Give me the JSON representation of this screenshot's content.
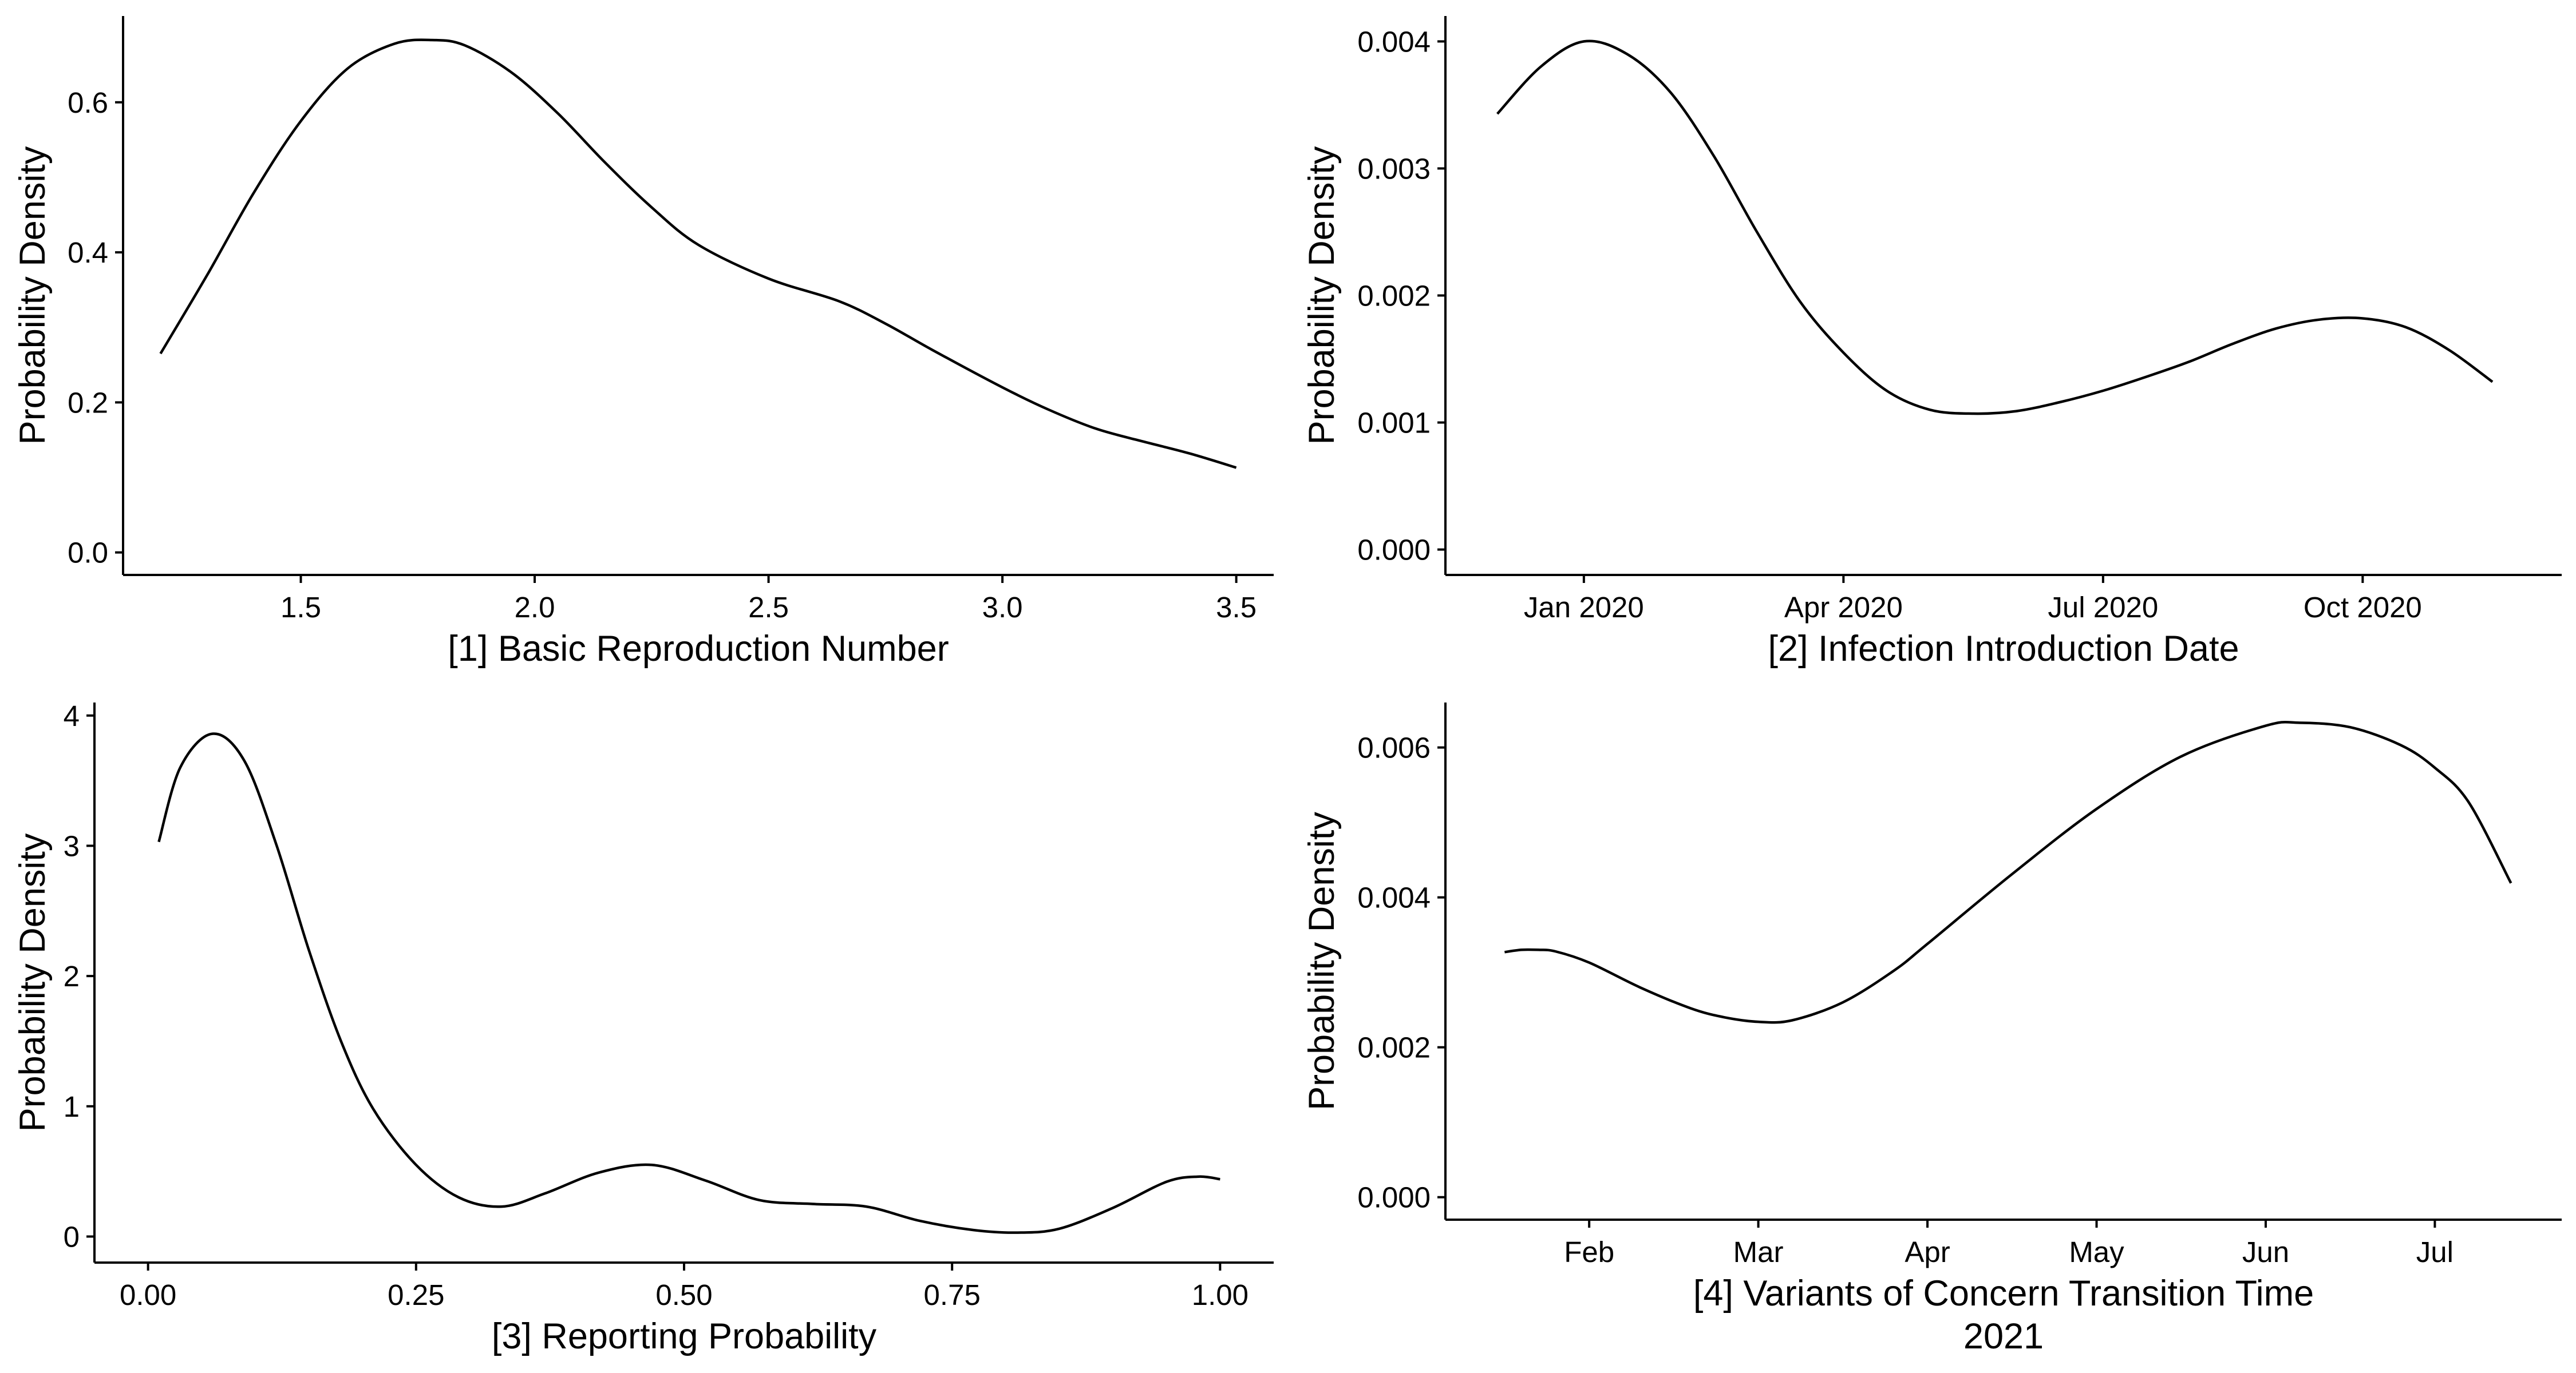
{
  "chart_data": [
    {
      "type": "line",
      "title": "",
      "xlabel": "[1] Basic Reproduction Number",
      "ylabel": "Probability Density",
      "x_ticks": [
        1.5,
        2.0,
        2.5,
        3.0,
        3.5
      ],
      "x_tick_labels": [
        "1.5",
        "2.0",
        "2.5",
        "3.0",
        "3.5"
      ],
      "y_ticks": [
        0.0,
        0.2,
        0.4,
        0.6
      ],
      "y_tick_labels": [
        "0.0",
        "0.2",
        "0.4",
        "0.6"
      ],
      "xlim": [
        1.12,
        3.58
      ],
      "ylim": [
        -0.03,
        0.715
      ],
      "series": [
        {
          "name": "density",
          "x": [
            1.2,
            1.3,
            1.4,
            1.5,
            1.6,
            1.7,
            1.78,
            1.85,
            1.95,
            2.05,
            2.15,
            2.25,
            2.35,
            2.5,
            2.65,
            2.75,
            2.85,
            3.0,
            3.1,
            3.2,
            3.3,
            3.4,
            3.5
          ],
          "y": [
            0.265,
            0.37,
            0.48,
            0.575,
            0.645,
            0.678,
            0.683,
            0.676,
            0.64,
            0.585,
            0.52,
            0.46,
            0.41,
            0.365,
            0.335,
            0.305,
            0.27,
            0.22,
            0.19,
            0.165,
            0.148,
            0.132,
            0.113
          ]
        }
      ]
    },
    {
      "type": "line",
      "title": "",
      "xlabel": "[2] Infection Introduction Date",
      "ylabel": "Probability Density",
      "x_unit": "month index (Jan 2020 = 0)",
      "x_ticks": [
        0,
        3,
        6,
        9
      ],
      "x_tick_labels": [
        "Jan 2020",
        "Apr 2020",
        "Jul 2020",
        "Oct 2020"
      ],
      "y_ticks": [
        0.0,
        0.001,
        0.002,
        0.003,
        0.004
      ],
      "y_tick_labels": [
        "0.000",
        "0.001",
        "0.002",
        "0.003",
        "0.004"
      ],
      "xlim": [
        -1.6,
        11.3
      ],
      "ylim": [
        -0.0002,
        0.0042
      ],
      "series": [
        {
          "name": "density",
          "x": [
            -1.0,
            -0.5,
            0.0,
            0.5,
            1.0,
            1.5,
            2.0,
            2.5,
            3.0,
            3.5,
            4.0,
            4.5,
            5.0,
            5.5,
            6.0,
            6.5,
            7.0,
            7.5,
            8.0,
            8.5,
            9.0,
            9.5,
            10.0,
            10.5
          ],
          "y": [
            0.00343,
            0.0038,
            0.004,
            0.0039,
            0.0036,
            0.0031,
            0.0025,
            0.00195,
            0.00155,
            0.00125,
            0.0011,
            0.00107,
            0.00109,
            0.00116,
            0.00125,
            0.00136,
            0.00148,
            0.00162,
            0.00174,
            0.00181,
            0.00182,
            0.00175,
            0.00157,
            0.00132
          ]
        }
      ]
    },
    {
      "type": "line",
      "title": "",
      "xlabel": "[3] Reporting Probability",
      "ylabel": "Probability Density",
      "x_ticks": [
        0.0,
        0.25,
        0.5,
        0.75,
        1.0
      ],
      "x_tick_labels": [
        "0.00",
        "0.25",
        "0.50",
        "0.75",
        "1.00"
      ],
      "y_ticks": [
        0,
        1,
        2,
        3,
        4
      ],
      "y_tick_labels": [
        "0",
        "1",
        "2",
        "3",
        "4"
      ],
      "xlim": [
        -0.05,
        1.05
      ],
      "ylim": [
        -0.2,
        4.1
      ],
      "series": [
        {
          "name": "density",
          "x": [
            0.01,
            0.03,
            0.06,
            0.09,
            0.12,
            0.15,
            0.18,
            0.21,
            0.25,
            0.29,
            0.33,
            0.37,
            0.42,
            0.47,
            0.52,
            0.57,
            0.62,
            0.67,
            0.72,
            0.77,
            0.81,
            0.85,
            0.9,
            0.95,
            0.98,
            1.0
          ],
          "y": [
            3.03,
            3.6,
            3.86,
            3.65,
            3.0,
            2.2,
            1.5,
            0.98,
            0.55,
            0.3,
            0.23,
            0.33,
            0.49,
            0.55,
            0.43,
            0.28,
            0.25,
            0.23,
            0.12,
            0.05,
            0.03,
            0.06,
            0.22,
            0.42,
            0.46,
            0.44
          ]
        }
      ]
    },
    {
      "type": "line",
      "title": "",
      "xlabel": "[4] Variants of Concern Transition Time",
      "xlabel2": "2021",
      "ylabel": "Probability Density",
      "x_unit": "month index (Feb 2021 = 0)",
      "x_ticks": [
        0,
        1,
        2,
        3,
        4,
        5
      ],
      "x_tick_labels": [
        "Feb",
        "Mar",
        "Apr",
        "May",
        "Jun",
        "Jul"
      ],
      "y_ticks": [
        0.0,
        0.002,
        0.004,
        0.006
      ],
      "y_tick_labels": [
        "0.000",
        "0.002",
        "0.004",
        "0.006"
      ],
      "xlim": [
        -0.85,
        5.75
      ],
      "ylim": [
        -0.0003,
        0.0066
      ],
      "series": [
        {
          "name": "density",
          "x": [
            -0.5,
            -0.4,
            -0.3,
            -0.2,
            0.0,
            0.3,
            0.6,
            0.8,
            1.0,
            1.2,
            1.5,
            1.8,
            2.0,
            2.5,
            3.0,
            3.5,
            4.0,
            4.2,
            4.5,
            4.8,
            5.0,
            5.2,
            5.45
          ],
          "y": [
            0.00327,
            0.0033,
            0.0033,
            0.00328,
            0.00313,
            0.0028,
            0.00252,
            0.0024,
            0.00234,
            0.00236,
            0.0026,
            0.00302,
            0.00338,
            0.00431,
            0.00518,
            0.00588,
            0.00629,
            0.00633,
            0.00627,
            0.00603,
            0.00573,
            0.00527,
            0.00419
          ]
        }
      ]
    }
  ]
}
